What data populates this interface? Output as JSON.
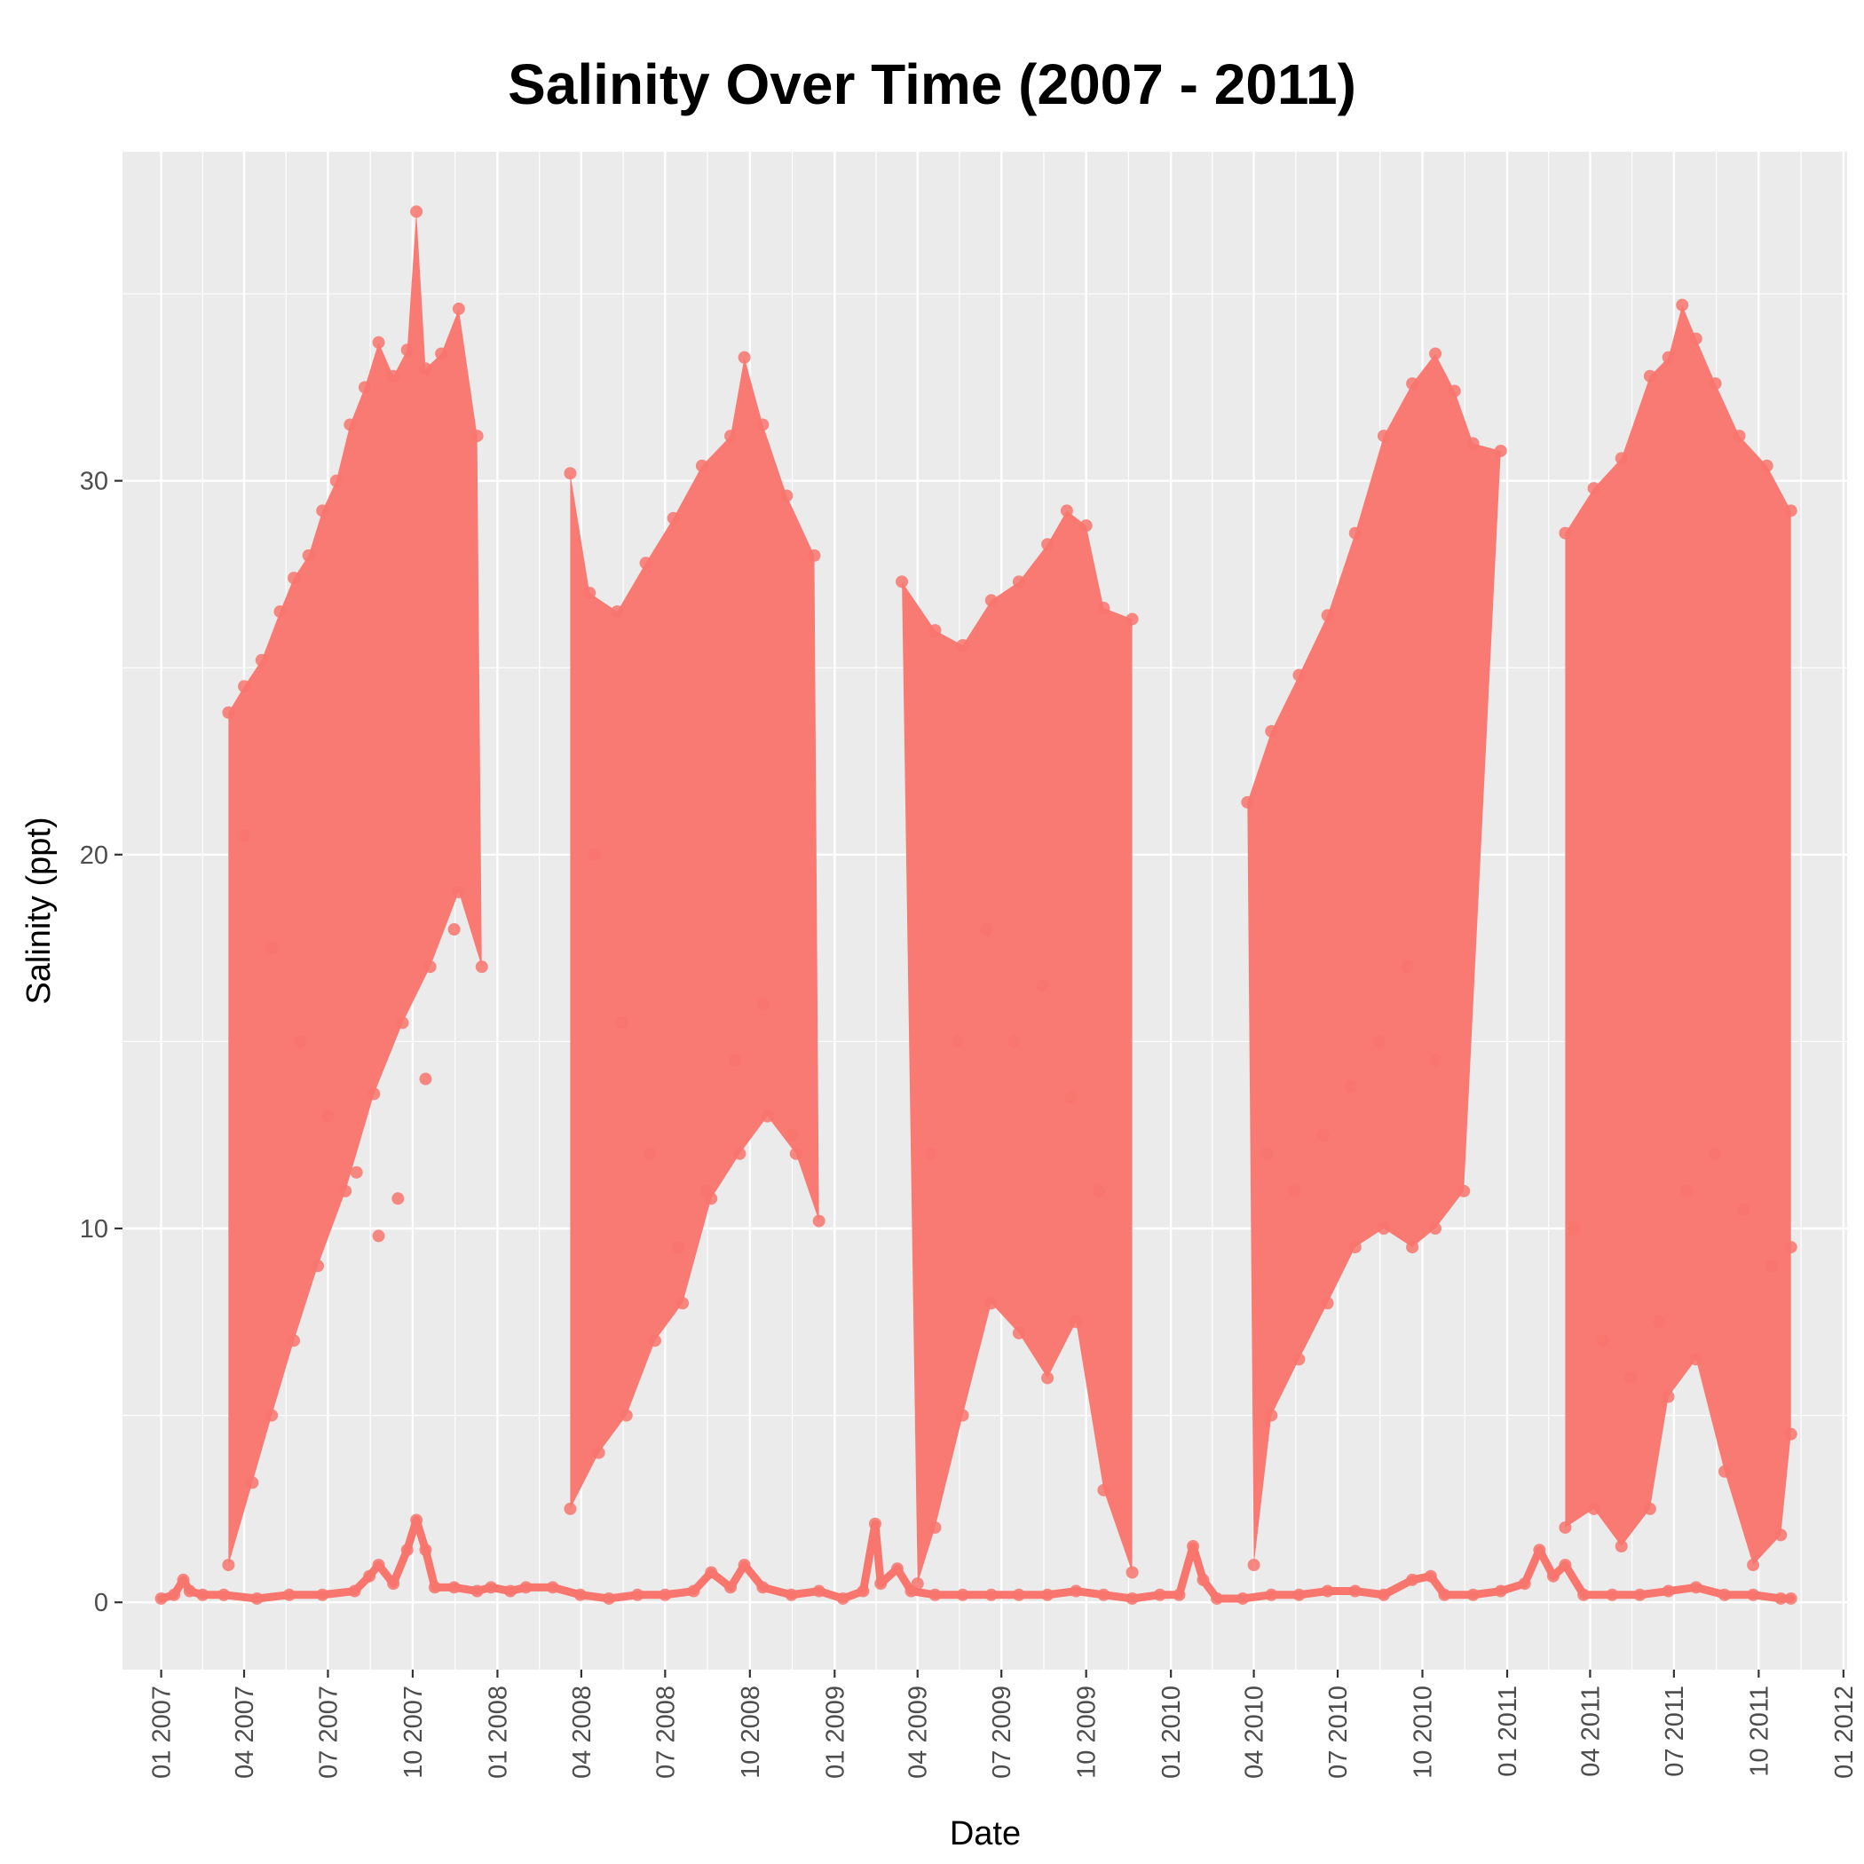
{
  "chart_data": {
    "type": "scatter",
    "title": "Salinity Over Time (2007 - 2011)",
    "xlabel": "Date",
    "ylabel": "Salinity (ppt)",
    "xlim": [
      "2006-11-20",
      "2012-01-05"
    ],
    "ylim": [
      -1.8,
      38.8
    ],
    "grid": true,
    "legend": "none",
    "point_color": "#F8766D",
    "panel_color": "#EBEBEB",
    "x_ticks": [
      {
        "date": "2007-01-01",
        "label": "01 2007"
      },
      {
        "date": "2007-04-01",
        "label": "04 2007"
      },
      {
        "date": "2007-07-01",
        "label": "07 2007"
      },
      {
        "date": "2007-10-01",
        "label": "10 2007"
      },
      {
        "date": "2008-01-01",
        "label": "01 2008"
      },
      {
        "date": "2008-04-01",
        "label": "04 2008"
      },
      {
        "date": "2008-07-01",
        "label": "07 2008"
      },
      {
        "date": "2008-10-01",
        "label": "10 2008"
      },
      {
        "date": "2009-01-01",
        "label": "01 2009"
      },
      {
        "date": "2009-04-01",
        "label": "04 2009"
      },
      {
        "date": "2009-07-01",
        "label": "07 2009"
      },
      {
        "date": "2009-10-01",
        "label": "10 2009"
      },
      {
        "date": "2010-01-01",
        "label": "01 2010"
      },
      {
        "date": "2010-04-01",
        "label": "04 2010"
      },
      {
        "date": "2010-07-01",
        "label": "07 2010"
      },
      {
        "date": "2010-10-01",
        "label": "10 2010"
      },
      {
        "date": "2011-01-01",
        "label": "01 2011"
      },
      {
        "date": "2011-04-01",
        "label": "04 2011"
      },
      {
        "date": "2011-07-01",
        "label": "07 2011"
      },
      {
        "date": "2011-10-01",
        "label": "10 2011"
      },
      {
        "date": "2012-01-01",
        "label": "01 2012"
      }
    ],
    "y_ticks": [
      0,
      10,
      20,
      30
    ],
    "series": [
      {
        "kind": "baseline",
        "points": [
          [
            "2007-01-01",
            0.1
          ],
          [
            "2007-01-15",
            0.2
          ],
          [
            "2007-01-25",
            0.6
          ],
          [
            "2007-02-01",
            0.3
          ],
          [
            "2007-02-15",
            0.2
          ],
          [
            "2007-03-10",
            0.2
          ],
          [
            "2007-04-15",
            0.1
          ],
          [
            "2007-05-20",
            0.2
          ],
          [
            "2007-06-25",
            0.2
          ],
          [
            "2007-07-30",
            0.3
          ],
          [
            "2007-08-15",
            0.7
          ],
          [
            "2007-08-25",
            1.0
          ],
          [
            "2007-09-10",
            0.5
          ],
          [
            "2007-09-25",
            1.4
          ],
          [
            "2007-10-05",
            2.2
          ],
          [
            "2007-10-15",
            1.4
          ],
          [
            "2007-10-25",
            0.4
          ],
          [
            "2007-11-15",
            0.4
          ],
          [
            "2007-12-10",
            0.3
          ],
          [
            "2007-12-25",
            0.4
          ],
          [
            "2008-01-15",
            0.3
          ],
          [
            "2008-02-01",
            0.4
          ],
          [
            "2008-03-01",
            0.4
          ],
          [
            "2008-03-31",
            0.2
          ],
          [
            "2008-05-01",
            0.1
          ],
          [
            "2008-06-01",
            0.2
          ],
          [
            "2008-07-01",
            0.2
          ],
          [
            "2008-08-01",
            0.3
          ],
          [
            "2008-08-20",
            0.8
          ],
          [
            "2008-09-10",
            0.4
          ],
          [
            "2008-09-25",
            1.0
          ],
          [
            "2008-10-15",
            0.4
          ],
          [
            "2008-11-15",
            0.2
          ],
          [
            "2008-12-15",
            0.3
          ],
          [
            "2009-01-10",
            0.1
          ],
          [
            "2009-02-01",
            0.3
          ],
          [
            "2009-02-14",
            2.1
          ],
          [
            "2009-02-20",
            0.5
          ],
          [
            "2009-03-10",
            0.9
          ],
          [
            "2009-03-25",
            0.3
          ],
          [
            "2009-04-20",
            0.2
          ],
          [
            "2009-05-20",
            0.2
          ],
          [
            "2009-06-20",
            0.2
          ],
          [
            "2009-07-20",
            0.2
          ],
          [
            "2009-08-20",
            0.2
          ],
          [
            "2009-09-20",
            0.3
          ],
          [
            "2009-10-20",
            0.2
          ],
          [
            "2009-11-20",
            0.1
          ],
          [
            "2009-12-20",
            0.2
          ],
          [
            "2010-01-10",
            0.2
          ],
          [
            "2010-01-25",
            1.5
          ],
          [
            "2010-02-05",
            0.6
          ],
          [
            "2010-02-20",
            0.1
          ],
          [
            "2010-03-20",
            0.1
          ],
          [
            "2010-04-20",
            0.2
          ],
          [
            "2010-05-20",
            0.2
          ],
          [
            "2010-06-20",
            0.3
          ],
          [
            "2010-07-20",
            0.3
          ],
          [
            "2010-08-20",
            0.2
          ],
          [
            "2010-09-20",
            0.6
          ],
          [
            "2010-10-10",
            0.7
          ],
          [
            "2010-10-25",
            0.2
          ],
          [
            "2010-11-25",
            0.2
          ],
          [
            "2010-12-25",
            0.3
          ],
          [
            "2011-01-20",
            0.5
          ],
          [
            "2011-02-05",
            1.4
          ],
          [
            "2011-02-20",
            0.7
          ],
          [
            "2011-03-05",
            1.0
          ],
          [
            "2011-03-25",
            0.2
          ],
          [
            "2011-04-25",
            0.2
          ],
          [
            "2011-05-25",
            0.2
          ],
          [
            "2011-06-25",
            0.3
          ],
          [
            "2011-07-25",
            0.4
          ],
          [
            "2011-08-25",
            0.2
          ],
          [
            "2011-09-25",
            0.2
          ],
          [
            "2011-10-25",
            0.1
          ],
          [
            "2011-11-05",
            0.1
          ]
        ]
      },
      {
        "kind": "season_high",
        "points": [
          [
            "2007-03-15",
            23.8
          ],
          [
            "2007-04-01",
            24.5
          ],
          [
            "2007-04-20",
            25.2
          ],
          [
            "2007-05-10",
            26.5
          ],
          [
            "2007-05-25",
            27.4
          ],
          [
            "2007-06-10",
            28.0
          ],
          [
            "2007-06-25",
            29.2
          ],
          [
            "2007-07-10",
            30.0
          ],
          [
            "2007-07-25",
            31.5
          ],
          [
            "2007-08-10",
            32.5
          ],
          [
            "2007-08-25",
            33.7
          ],
          [
            "2007-09-10",
            32.8
          ],
          [
            "2007-09-25",
            33.5
          ],
          [
            "2007-10-05",
            37.2
          ],
          [
            "2007-10-15",
            33.0
          ],
          [
            "2007-11-01",
            33.4
          ],
          [
            "2007-11-20",
            34.6
          ],
          [
            "2007-12-10",
            31.2
          ],
          [
            "2008-03-20",
            30.2
          ],
          [
            "2008-04-10",
            27.0
          ],
          [
            "2008-05-10",
            26.5
          ],
          [
            "2008-06-10",
            27.8
          ],
          [
            "2008-07-10",
            29.0
          ],
          [
            "2008-08-10",
            30.4
          ],
          [
            "2008-09-10",
            31.2
          ],
          [
            "2008-09-25",
            33.3
          ],
          [
            "2008-10-15",
            31.5
          ],
          [
            "2008-11-10",
            29.6
          ],
          [
            "2008-12-10",
            28.0
          ],
          [
            "2009-03-15",
            27.3
          ],
          [
            "2009-04-20",
            26.0
          ],
          [
            "2009-05-20",
            25.6
          ],
          [
            "2009-06-20",
            26.8
          ],
          [
            "2009-07-20",
            27.3
          ],
          [
            "2009-08-20",
            28.3
          ],
          [
            "2009-09-10",
            29.2
          ],
          [
            "2009-10-01",
            28.8
          ],
          [
            "2009-10-20",
            26.6
          ],
          [
            "2009-11-20",
            26.3
          ],
          [
            "2010-03-25",
            21.4
          ],
          [
            "2010-04-20",
            23.3
          ],
          [
            "2010-05-20",
            24.8
          ],
          [
            "2010-06-20",
            26.4
          ],
          [
            "2010-07-20",
            28.6
          ],
          [
            "2010-08-20",
            31.2
          ],
          [
            "2010-09-20",
            32.6
          ],
          [
            "2010-10-15",
            33.4
          ],
          [
            "2010-11-05",
            32.4
          ],
          [
            "2010-11-25",
            31.0
          ],
          [
            "2010-12-25",
            30.8
          ],
          [
            "2011-03-05",
            28.6
          ],
          [
            "2011-04-05",
            29.8
          ],
          [
            "2011-05-05",
            30.6
          ],
          [
            "2011-06-05",
            32.8
          ],
          [
            "2011-06-25",
            33.3
          ],
          [
            "2011-07-10",
            34.7
          ],
          [
            "2011-07-25",
            33.8
          ],
          [
            "2011-08-15",
            32.6
          ],
          [
            "2011-09-10",
            31.2
          ],
          [
            "2011-10-10",
            30.4
          ],
          [
            "2011-11-05",
            29.2
          ]
        ]
      },
      {
        "kind": "season_low",
        "points": [
          [
            "2007-03-15",
            1.0
          ],
          [
            "2007-04-10",
            3.2
          ],
          [
            "2007-05-01",
            5.0
          ],
          [
            "2007-05-25",
            7.0
          ],
          [
            "2007-06-20",
            9.0
          ],
          [
            "2007-07-20",
            11.0
          ],
          [
            "2007-08-20",
            13.6
          ],
          [
            "2007-09-20",
            15.5
          ],
          [
            "2007-10-20",
            17.0
          ],
          [
            "2007-11-20",
            19.0
          ],
          [
            "2007-12-15",
            17.0
          ],
          [
            "2008-03-20",
            2.5
          ],
          [
            "2008-04-20",
            4.0
          ],
          [
            "2008-05-20",
            5.0
          ],
          [
            "2008-06-20",
            7.0
          ],
          [
            "2008-07-20",
            8.0
          ],
          [
            "2008-08-20",
            10.8
          ],
          [
            "2008-09-20",
            12.0
          ],
          [
            "2008-10-20",
            13.0
          ],
          [
            "2008-11-20",
            12.0
          ],
          [
            "2008-12-15",
            10.2
          ],
          [
            "2009-04-01",
            0.5
          ],
          [
            "2009-04-20",
            2.0
          ],
          [
            "2009-05-20",
            5.0
          ],
          [
            "2009-06-20",
            8.0
          ],
          [
            "2009-07-20",
            7.2
          ],
          [
            "2009-08-20",
            6.0
          ],
          [
            "2009-09-20",
            7.5
          ],
          [
            "2009-10-20",
            3.0
          ],
          [
            "2009-11-20",
            0.8
          ],
          [
            "2010-04-01",
            1.0
          ],
          [
            "2010-04-20",
            5.0
          ],
          [
            "2010-05-20",
            6.5
          ],
          [
            "2010-06-20",
            8.0
          ],
          [
            "2010-07-20",
            9.5
          ],
          [
            "2010-08-20",
            10.0
          ],
          [
            "2010-09-20",
            9.5
          ],
          [
            "2010-10-15",
            10.0
          ],
          [
            "2010-11-15",
            11.0
          ],
          [
            "2011-03-05",
            2.0
          ],
          [
            "2011-04-05",
            2.5
          ],
          [
            "2011-05-05",
            1.5
          ],
          [
            "2011-06-05",
            2.5
          ],
          [
            "2011-06-25",
            5.5
          ],
          [
            "2011-07-25",
            6.5
          ],
          [
            "2011-08-25",
            3.5
          ],
          [
            "2011-09-25",
            1.0
          ],
          [
            "2011-10-25",
            1.8
          ],
          [
            "2011-11-05",
            4.5
          ]
        ]
      },
      {
        "kind": "season_band",
        "points": [
          [
            "2007-04-01",
            20.5
          ],
          [
            "2007-05-01",
            17.5
          ],
          [
            "2007-06-01",
            15.0
          ],
          [
            "2007-07-01",
            13.0
          ],
          [
            "2007-08-01",
            11.5
          ],
          [
            "2007-08-25",
            9.8
          ],
          [
            "2007-09-15",
            10.8
          ],
          [
            "2007-10-15",
            14.0
          ],
          [
            "2007-11-15",
            18.0
          ],
          [
            "2008-04-15",
            20.0
          ],
          [
            "2008-05-15",
            15.5
          ],
          [
            "2008-06-15",
            12.0
          ],
          [
            "2008-07-15",
            9.5
          ],
          [
            "2008-08-15",
            11.0
          ],
          [
            "2008-09-15",
            14.5
          ],
          [
            "2008-10-15",
            16.0
          ],
          [
            "2008-11-15",
            12.5
          ],
          [
            "2009-04-15",
            12.0
          ],
          [
            "2009-05-15",
            15.0
          ],
          [
            "2009-06-15",
            18.0
          ],
          [
            "2009-07-15",
            15.0
          ],
          [
            "2009-08-15",
            16.5
          ],
          [
            "2009-09-15",
            13.5
          ],
          [
            "2009-10-15",
            11.0
          ],
          [
            "2010-04-15",
            12.0
          ],
          [
            "2010-05-15",
            11.0
          ],
          [
            "2010-06-15",
            12.5
          ],
          [
            "2010-07-15",
            13.8
          ],
          [
            "2010-08-15",
            15.0
          ],
          [
            "2010-09-15",
            17.0
          ],
          [
            "2010-10-15",
            14.5
          ],
          [
            "2011-03-15",
            10.0
          ],
          [
            "2011-04-15",
            7.0
          ],
          [
            "2011-05-15",
            6.0
          ],
          [
            "2011-06-15",
            7.5
          ],
          [
            "2011-07-15",
            11.0
          ],
          [
            "2011-08-15",
            12.0
          ],
          [
            "2011-09-15",
            10.5
          ],
          [
            "2011-10-15",
            9.0
          ],
          [
            "2011-11-05",
            9.5
          ]
        ]
      }
    ]
  }
}
